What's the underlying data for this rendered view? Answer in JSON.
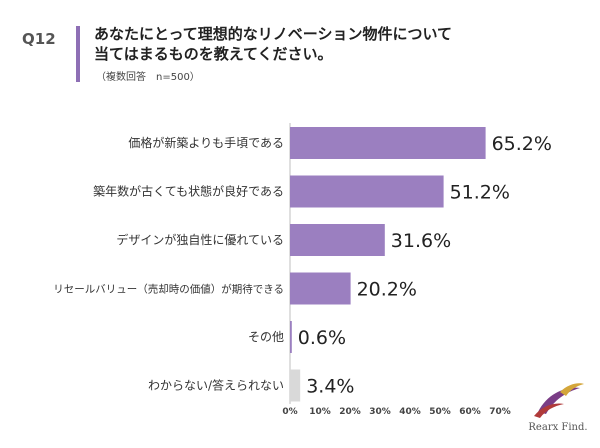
{
  "question": {
    "number": "Q12",
    "title_line1": "あなたにとって理想的なリノベーション物件について",
    "title_line2": "当てはまるものを教えてください。",
    "subtitle": "（複数回答　n=500）"
  },
  "chart_data": {
    "type": "bar",
    "orientation": "horizontal",
    "categories": [
      "価格が新築よりも手頃である",
      "築年数が古くても状態が良好である",
      "デザインが独自性に優れている",
      "リセールバリュー（売却時の価値）が期待できる",
      "その他",
      "わからない/答えられない"
    ],
    "values": [
      65.2,
      51.2,
      31.6,
      20.2,
      0.6,
      3.4
    ],
    "value_labels": [
      "65.2%",
      "51.2%",
      "31.6%",
      "20.2%",
      "0.6%",
      "3.4%"
    ],
    "bar_colors": [
      "#9b7fc0",
      "#9b7fc0",
      "#9b7fc0",
      "#9b7fc0",
      "#9b7fc0",
      "#d9d9d9"
    ],
    "xlim": [
      0,
      70
    ],
    "x_ticks": [
      "0%",
      "10%",
      "20%",
      "30%",
      "40%",
      "50%",
      "60%",
      "70%"
    ],
    "grid": false
  },
  "logo": {
    "text": "Rearx Find."
  },
  "colors": {
    "accent": "#8e6fb5",
    "bar": "#9b7fc0",
    "bar_muted": "#d9d9d9"
  }
}
